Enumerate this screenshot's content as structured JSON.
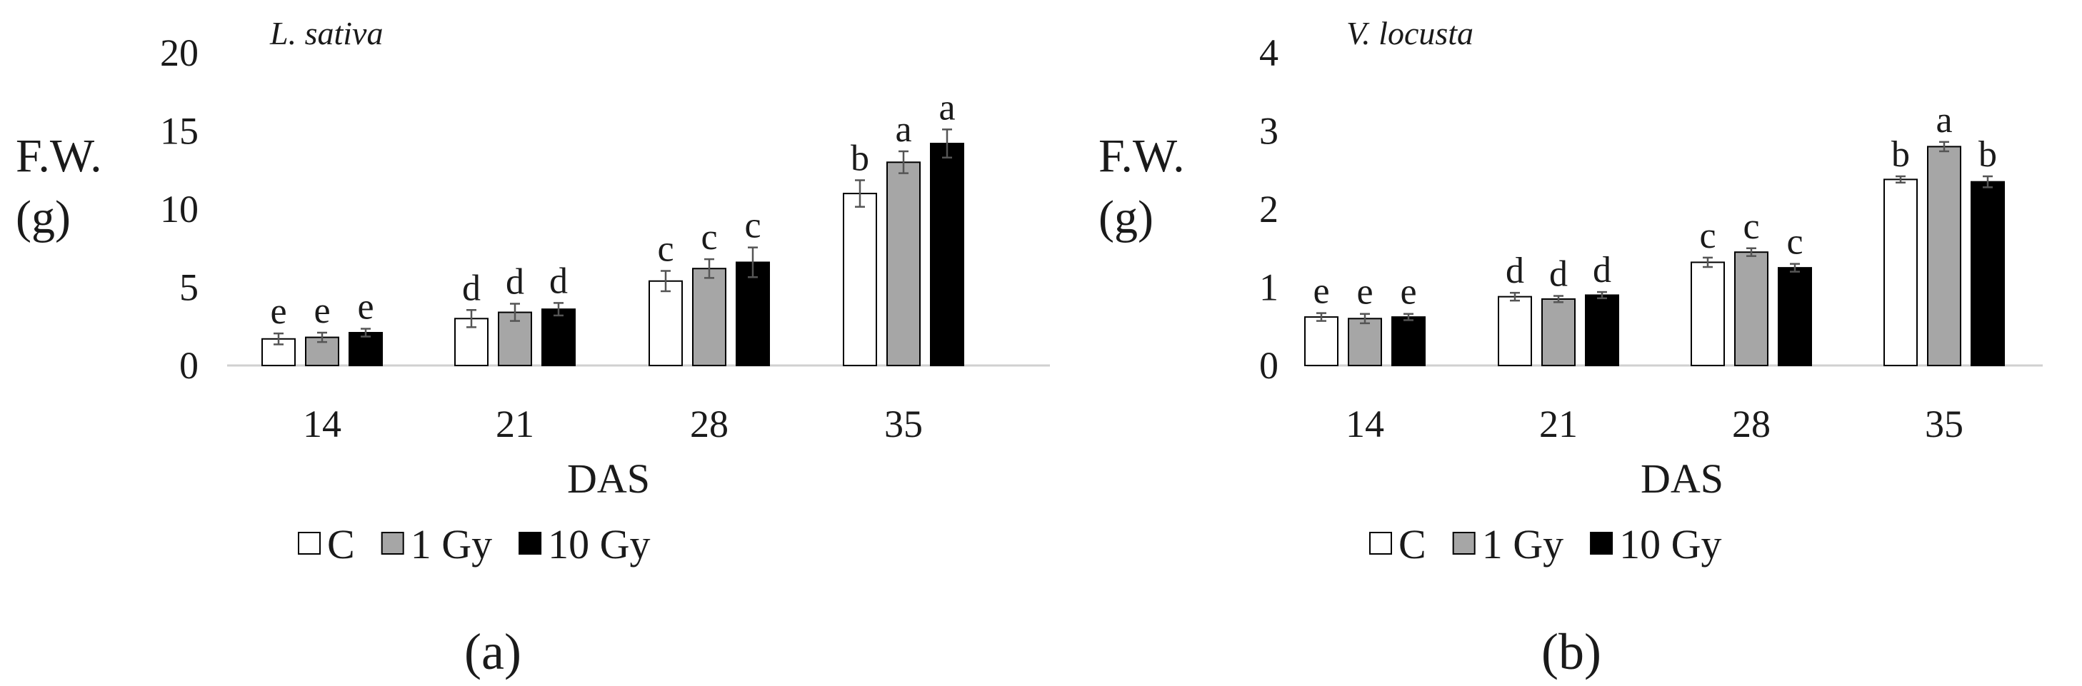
{
  "chart_data": [
    {
      "type": "bar",
      "title": "L. sativa",
      "ylabel_lines": [
        "F.W.",
        "(g)"
      ],
      "xlabel": "DAS",
      "categories": [
        "14",
        "21",
        "28",
        "35"
      ],
      "ylim": [
        0,
        20
      ],
      "yticks": [
        "0",
        "5",
        "10",
        "15",
        "20"
      ],
      "grid": false,
      "legend_position": "bottom",
      "series": [
        {
          "name": "C",
          "color": "#ffffff",
          "values": [
            1.7,
            3.0,
            5.4,
            11.0
          ],
          "errors": [
            0.35,
            0.55,
            0.65,
            0.85
          ],
          "labels": [
            "e",
            "d",
            "c",
            "b"
          ]
        },
        {
          "name": "1 Gy",
          "color": "#a6a6a6",
          "values": [
            1.8,
            3.4,
            6.2,
            13.0
          ],
          "errors": [
            0.3,
            0.55,
            0.6,
            0.7
          ],
          "labels": [
            "e",
            "d",
            "c",
            "a"
          ]
        },
        {
          "name": "10 Gy",
          "color": "#000000",
          "values": [
            2.1,
            3.6,
            6.6,
            14.2
          ],
          "errors": [
            0.25,
            0.4,
            0.95,
            0.9
          ],
          "labels": [
            "e",
            "d",
            "c",
            "a"
          ]
        }
      ],
      "panel_label": "(a)"
    },
    {
      "type": "bar",
      "title": "V. locusta",
      "ylabel_lines": [
        "F.W.",
        "(g)"
      ],
      "xlabel": "DAS",
      "categories": [
        "14",
        "21",
        "28",
        "35"
      ],
      "ylim": [
        0,
        4
      ],
      "yticks": [
        "0",
        "1",
        "2",
        "3",
        "4"
      ],
      "grid": false,
      "legend_position": "bottom",
      "series": [
        {
          "name": "C",
          "color": "#ffffff",
          "values": [
            0.62,
            0.88,
            1.32,
            2.38
          ],
          "errors": [
            0.05,
            0.05,
            0.06,
            0.04
          ],
          "labels": [
            "e",
            "d",
            "c",
            "b"
          ]
        },
        {
          "name": "1 Gy",
          "color": "#a6a6a6",
          "values": [
            0.6,
            0.85,
            1.45,
            2.8
          ],
          "errors": [
            0.06,
            0.04,
            0.05,
            0.06
          ],
          "labels": [
            "e",
            "d",
            "c",
            "a"
          ]
        },
        {
          "name": "10 Gy",
          "color": "#000000",
          "values": [
            0.62,
            0.9,
            1.25,
            2.35
          ],
          "errors": [
            0.04,
            0.04,
            0.05,
            0.07
          ],
          "labels": [
            "e",
            "d",
            "c",
            "b"
          ]
        }
      ],
      "panel_label": "(b)"
    }
  ]
}
